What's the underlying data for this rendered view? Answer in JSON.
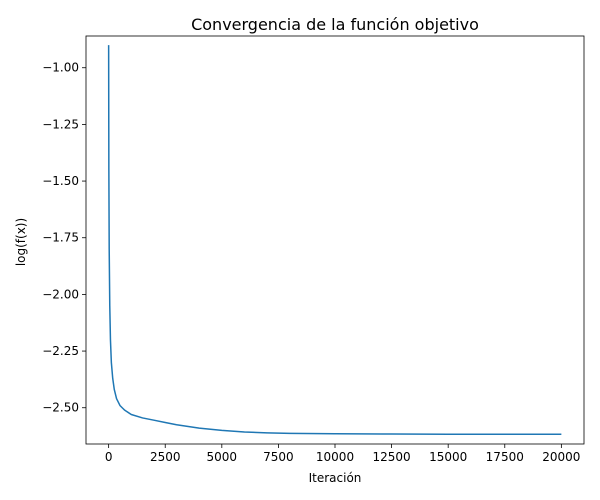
{
  "chart_data": {
    "type": "line",
    "title": "Convergencia de la función objetivo",
    "xlabel": "Iteración",
    "ylabel": "log(f(x))",
    "xlim": [
      -1000,
      21000
    ],
    "ylim": [
      -2.66,
      -0.86
    ],
    "xticks": [
      0,
      2500,
      5000,
      7500,
      10000,
      12500,
      15000,
      17500,
      20000
    ],
    "xtick_labels": [
      "0",
      "2500",
      "5000",
      "7500",
      "10000",
      "12500",
      "15000",
      "17500",
      "20000"
    ],
    "yticks": [
      -1.0,
      -1.25,
      -1.5,
      -1.75,
      -2.0,
      -2.25,
      -2.5
    ],
    "ytick_labels": [
      "−1.00",
      "−1.25",
      "−1.50",
      "−1.75",
      "−2.00",
      "−2.25",
      "−2.50"
    ],
    "grid": false,
    "series": [
      {
        "color": "#1f77b4",
        "x": [
          0,
          10,
          25,
          50,
          80,
          120,
          180,
          250,
          350,
          500,
          700,
          1000,
          1500,
          2000,
          2500,
          3000,
          4000,
          5000,
          6000,
          7000,
          8000,
          10000,
          12500,
          15000,
          17500,
          20000
        ],
        "y": [
          -0.9,
          -1.45,
          -1.8,
          -2.05,
          -2.2,
          -2.3,
          -2.37,
          -2.42,
          -2.46,
          -2.49,
          -2.51,
          -2.53,
          -2.545,
          -2.555,
          -2.565,
          -2.575,
          -2.59,
          -2.6,
          -2.607,
          -2.611,
          -2.613,
          -2.615,
          -2.616,
          -2.617,
          -2.617,
          -2.617
        ]
      }
    ]
  }
}
